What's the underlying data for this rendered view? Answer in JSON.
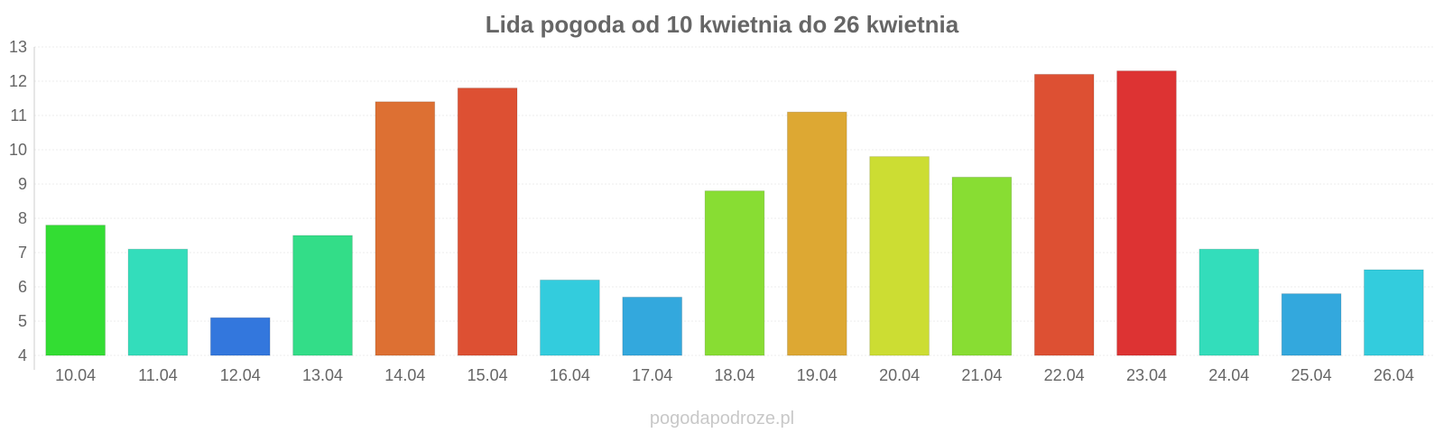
{
  "chart_data": {
    "type": "bar",
    "title": "Lida pogoda od 10 kwietnia do 26 kwietnia",
    "xlabel": "",
    "ylabel": "",
    "categories": [
      "10.04",
      "11.04",
      "12.04",
      "13.04",
      "14.04",
      "15.04",
      "16.04",
      "17.04",
      "18.04",
      "19.04",
      "20.04",
      "21.04",
      "22.04",
      "23.04",
      "24.04",
      "25.04",
      "26.04"
    ],
    "values": [
      7.8,
      7.1,
      5.1,
      7.5,
      11.4,
      11.8,
      6.2,
      5.7,
      8.8,
      11.1,
      9.8,
      9.2,
      12.2,
      12.3,
      7.1,
      5.8,
      6.5
    ],
    "colors": [
      "#33dd33",
      "#33ddbb",
      "#3377dd",
      "#33dd88",
      "#dd7033",
      "#dd5033",
      "#33ccdd",
      "#33a8dd",
      "#88dd33",
      "#dda833",
      "#ccdd33",
      "#88dd33",
      "#dd5033",
      "#dd3333",
      "#33ddbb",
      "#33a8dd",
      "#33ccdd"
    ],
    "ylim": [
      4,
      13
    ],
    "yticks": [
      "4",
      "5",
      "6",
      "7",
      "8",
      "9",
      "10",
      "11",
      "12",
      "13"
    ],
    "grid": true,
    "legend": "none"
  },
  "watermark": "pogodapodroze.pl"
}
